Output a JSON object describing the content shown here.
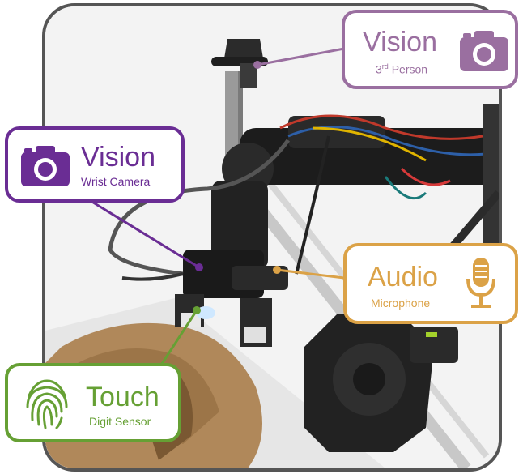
{
  "colors": {
    "vision_third": "#9a6fa0",
    "vision_wrist": "#6a2d94",
    "audio": "#dba247",
    "touch": "#66a034",
    "frame": "#555555"
  },
  "callouts": {
    "vision_third": {
      "title": "Vision",
      "sub_prefix": "3",
      "sub_sup": "rd",
      "sub_rest": " Person",
      "icon": "camera-icon"
    },
    "vision_wrist": {
      "title": "Vision",
      "sub": "Wrist Camera",
      "icon": "camera-icon"
    },
    "audio": {
      "title": "Audio",
      "sub": "Microphone",
      "icon": "microphone-icon"
    },
    "touch": {
      "title": "Touch",
      "sub": "Digit Sensor",
      "icon": "fingerprint-icon"
    }
  }
}
